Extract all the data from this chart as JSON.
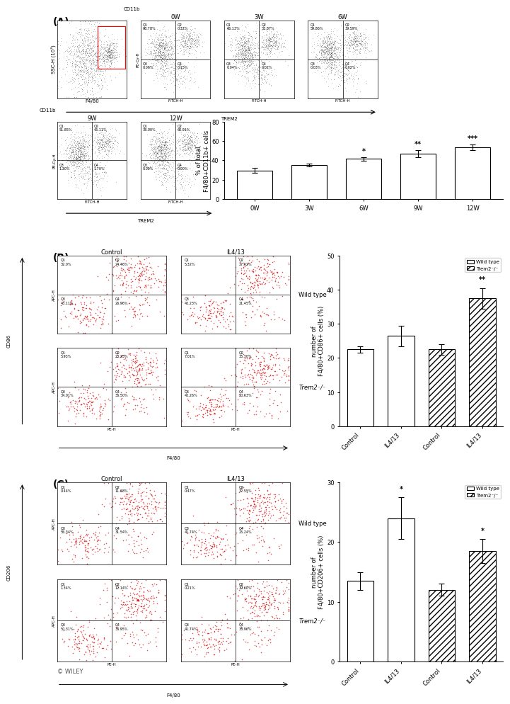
{
  "panel_A_bar": {
    "categories": [
      "0W",
      "3W",
      "6W",
      "9W",
      "12W"
    ],
    "values": [
      29.5,
      35.5,
      41.5,
      47.0,
      53.5
    ],
    "errors": [
      2.5,
      1.5,
      2.0,
      3.5,
      3.0
    ],
    "significance": [
      "",
      "",
      "*",
      "**",
      "***"
    ],
    "ylabel": "% of total\nF4/80+CD11b+ cells",
    "ylim": [
      0,
      80
    ],
    "yticks": [
      0,
      20,
      40,
      60,
      80
    ]
  },
  "panel_B_bar": {
    "categories": [
      "Control",
      "IL4/13",
      "Control",
      "IL4/13"
    ],
    "values": [
      22.5,
      26.5,
      22.5,
      37.5
    ],
    "errors": [
      1.0,
      3.0,
      1.5,
      3.0
    ],
    "significance": [
      "",
      "",
      "",
      "**"
    ],
    "ylabel": "number of\nF4/80+CD86+ cells (%)",
    "ylim": [
      0,
      50
    ],
    "yticks": [
      0,
      10,
      20,
      30,
      40,
      50
    ],
    "hatch": [
      "",
      "",
      "////",
      "////"
    ]
  },
  "panel_C_bar": {
    "categories": [
      "Control",
      "IL4/13",
      "Control",
      "IL4/13"
    ],
    "values": [
      13.5,
      24.0,
      12.0,
      18.5
    ],
    "errors": [
      1.5,
      3.5,
      1.0,
      2.0
    ],
    "significance": [
      "",
      "*",
      "",
      "*"
    ],
    "ylabel": "number of\nF4/80+CD206+ cells (%)",
    "ylim": [
      0,
      30
    ],
    "yticks": [
      0,
      10,
      20,
      30
    ],
    "hatch": [
      "",
      "",
      "////",
      "////"
    ]
  },
  "flow_dot_color": "#cc0000",
  "panel_label_fontsize": 10,
  "axis_fontsize": 6,
  "tick_fontsize": 6,
  "bar_color": "#ffffff",
  "bar_edgecolor": "#000000",
  "sig_fontsize": 7,
  "q_fontsize": 3.5,
  "flow_title_fontsize": 6,
  "flow_ylabel_fontsize": 5,
  "flow_xlabel_fontsize": 5,
  "row_label_fontsize": 6,
  "col_title_fontsize": 6,
  "panel_A_q0W": [
    "Q1\n68.78%",
    "Q2\n0.32%",
    "Q3\n0.09%",
    "Q4\n0.15%"
  ],
  "panel_A_q3W": [
    "Q1\n66.13%",
    "Q2\n33.87%",
    "Q3\n0.04%",
    "Q4\n0.02%"
  ],
  "panel_A_q6W": [
    "Q1\n59.86%",
    "Q2\n39.59%",
    "Q3\n0.03%",
    "Q4\n0.02%"
  ],
  "panel_A_q9W": [
    "Q1\n51.85%",
    "Q2\n45.11%",
    "Q3\n1.30%",
    "Q4\n1.70%"
  ],
  "panel_A_q12W": [
    "Q1\n38.00%",
    "Q2\n60.91%",
    "Q3\n0.09%",
    "Q4\n0.00%"
  ],
  "panel_B_q": [
    [
      "Q1\n32.0%",
      "Q2\n24.46%",
      "Q3\n43.11%",
      "Q4\n26.96%"
    ],
    [
      "Q1\n5.32%",
      "Q2\n27.02%",
      "Q3\n45.23%",
      "Q4\n21.45%"
    ],
    [
      "Q1\n5.93%",
      "Q2\n23.25%",
      "Q3\n34.01%",
      "Q4\n36.50%"
    ],
    [
      "Q1\n7.01%",
      "Q2\n35.10%",
      "Q3\n45.26%",
      "Q4\n20.63%"
    ]
  ],
  "panel_C_q": [
    [
      "Q1\n0.44%",
      "Q2\n11.68%",
      "Q3\n56.34%",
      "Q4\n31.54%"
    ],
    [
      "Q1\n0.47%",
      "Q2\n32.55%",
      "Q3\n41.74%",
      "Q4\n25.24%"
    ],
    [
      "Q1\n1.34%",
      "Q2\n12.14%",
      "Q3\n50.31%",
      "Q4\n36.95%"
    ],
    [
      "Q1\n0.21%",
      "Q2\n19.60%",
      "Q3\n41.74%",
      "Q4\n38.96%"
    ]
  ],
  "seeds_B": [
    101,
    202,
    303,
    404
  ],
  "seeds_C": [
    501,
    602,
    703,
    804
  ],
  "seeds_A": [
    11,
    22,
    33,
    44,
    55
  ],
  "seed_gate": 5
}
